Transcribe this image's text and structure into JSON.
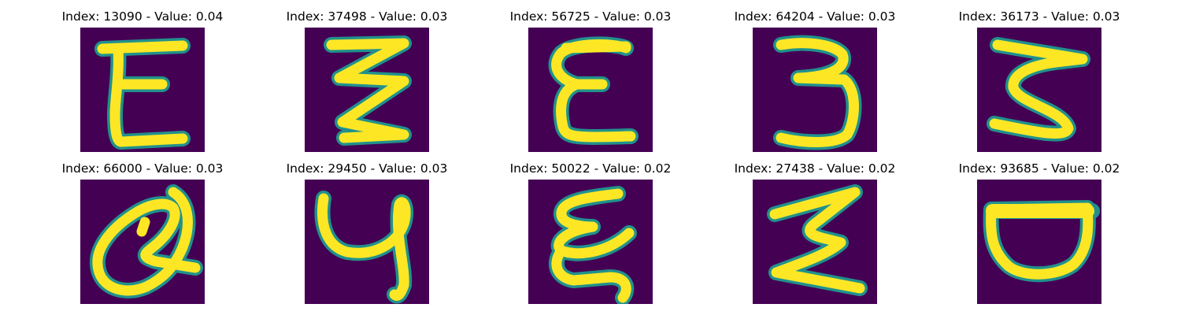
{
  "colors": {
    "background": "#440154",
    "stroke_core": "#fde725",
    "stroke_edge": "#21918c"
  },
  "panels": [
    {
      "title": "Index: 13090 - Value: 0.04"
    },
    {
      "title": "Index: 37498 - Value: 0.03"
    },
    {
      "title": "Index: 56725 - Value: 0.03"
    },
    {
      "title": "Index: 64204 - Value: 0.03"
    },
    {
      "title": "Index: 36173 - Value: 0.03"
    },
    {
      "title": "Index: 66000 - Value: 0.03"
    },
    {
      "title": "Index: 29450 - Value: 0.03"
    },
    {
      "title": "Index: 50022 - Value: 0.02"
    },
    {
      "title": "Index: 27438 - Value: 0.02"
    },
    {
      "title": "Index: 93685 - Value: 0.02"
    }
  ]
}
